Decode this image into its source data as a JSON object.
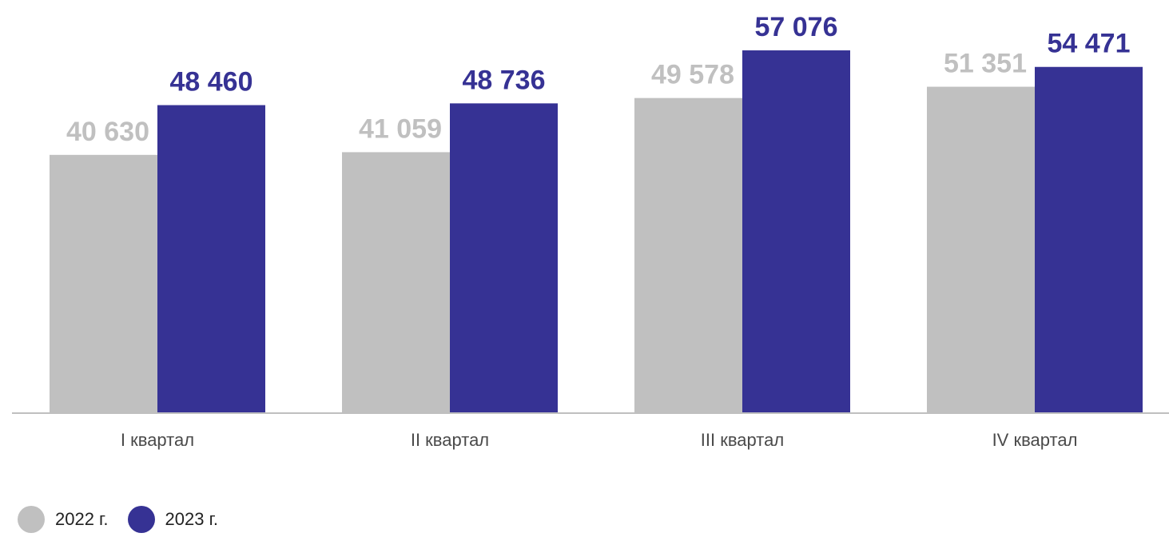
{
  "chart_data": {
    "type": "bar",
    "categories": [
      "I квартал",
      "II квартал",
      "III квартал",
      "IV квартал"
    ],
    "series": [
      {
        "name": "2022 г.",
        "values": [
          40630,
          41059,
          49578,
          51351
        ],
        "labels": [
          "40 630",
          "41 059",
          "49 578",
          "51 351"
        ],
        "color": "#c0c0c0"
      },
      {
        "name": "2023 г.",
        "values": [
          48460,
          48736,
          57076,
          54471
        ],
        "labels": [
          "48 460",
          "48 736",
          "57 076",
          "54 471"
        ],
        "color": "#363294"
      }
    ],
    "ylim": [
      0,
      65000
    ],
    "grid": false,
    "legend_position": "bottom-left"
  }
}
